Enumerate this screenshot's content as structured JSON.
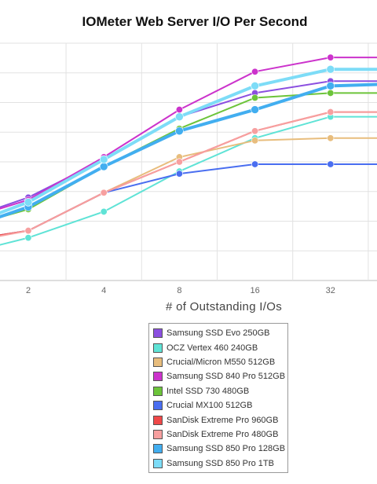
{
  "chart_data": {
    "type": "line",
    "title": "IOMeter Web Server I/O Per Second",
    "xlabel": "# of Outstanding I/Os",
    "ylabel": "",
    "x": [
      1,
      2,
      4,
      8,
      16,
      32,
      64
    ],
    "x_tick_labels": [
      "2",
      "4",
      "8",
      "16",
      "32"
    ],
    "y_scale_note": "y values are relative (no y tick labels visible)",
    "ylim": [
      0,
      100
    ],
    "grid": true,
    "legend_position": "bottom-center",
    "series": [
      {
        "name": "Samsung SSD Evo 250GB",
        "color": "#8b4fe0",
        "values": [
          24,
          35,
          51,
          69,
          79,
          84,
          84
        ]
      },
      {
        "name": "OCZ Vertex 460 240GB",
        "color": "#5fe3d6",
        "values": [
          10,
          18,
          29,
          46,
          60,
          69,
          69
        ]
      },
      {
        "name": "Crucial/Micron M550 512GB",
        "color": "#e8bd7d",
        "values": [
          16,
          21,
          37,
          52,
          59,
          60,
          60
        ]
      },
      {
        "name": "Samsung SSD 840 Pro 512GB",
        "color": "#cc33cc",
        "values": [
          24,
          34,
          52,
          72,
          88,
          94,
          94
        ]
      },
      {
        "name": "Intel SSD 730 480GB",
        "color": "#6cc43a",
        "values": [
          21,
          30,
          48,
          64,
          77,
          79,
          79
        ]
      },
      {
        "name": "Crucial MX100 512GB",
        "color": "#4a6ef0",
        "values": [
          16,
          21,
          37,
          45,
          49,
          49,
          49
        ]
      },
      {
        "name": "SanDisk Extreme Pro 960GB",
        "color": "#f04848",
        "values": [
          16,
          21,
          37,
          50,
          63,
          71,
          71
        ]
      },
      {
        "name": "SanDisk Extreme Pro 480GB",
        "color": "#f7a0a0",
        "values": [
          15,
          21,
          37,
          50,
          63,
          71,
          71
        ]
      },
      {
        "name": "Samsung SSD 850 Pro 128GB",
        "color": "#42aef0",
        "values": [
          20,
          31,
          48,
          63,
          72,
          82,
          83
        ]
      },
      {
        "name": "Samsung SSD 850 Pro 1TB",
        "color": "#7ddcf7",
        "values": [
          21,
          33,
          51,
          69,
          82,
          89,
          89
        ]
      }
    ]
  }
}
